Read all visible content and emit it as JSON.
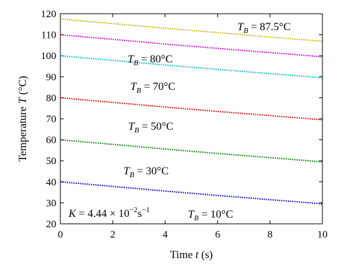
{
  "chart_data": {
    "type": "line",
    "xlabel": {
      "prefix": "Time ",
      "var": "t",
      "suffix": " (s)"
    },
    "ylabel": {
      "prefix": "Temperature ",
      "var": "T",
      "suffix": " (°C)"
    },
    "xlim": [
      0,
      10
    ],
    "ylim": [
      20,
      120
    ],
    "xticks": [
      0,
      2,
      4,
      6,
      8,
      10
    ],
    "yticks": [
      20,
      30,
      40,
      50,
      60,
      70,
      80,
      90,
      100,
      110,
      120
    ],
    "grid": false,
    "x": [
      0,
      2,
      4,
      6,
      8,
      10
    ],
    "series": [
      {
        "color": "#c8b400",
        "values": [
          117.5,
          115.3,
          113.1,
          111.0,
          108.9,
          106.9
        ]
      },
      {
        "color": "#cc00cc",
        "values": [
          110.0,
          107.8,
          105.6,
          103.5,
          101.5,
          99.5
        ]
      },
      {
        "color": "#00b8c8",
        "values": [
          100.0,
          97.8,
          95.6,
          93.5,
          91.5,
          89.5
        ]
      },
      {
        "color": "#e00000",
        "values": [
          80.0,
          77.8,
          75.6,
          73.5,
          71.5,
          69.5
        ]
      },
      {
        "color": "#008000",
        "values": [
          60.0,
          57.8,
          55.6,
          53.5,
          51.5,
          49.5
        ]
      },
      {
        "color": "#0000cc",
        "values": [
          40.0,
          37.8,
          35.6,
          33.5,
          31.5,
          29.5
        ]
      }
    ],
    "annotations": [
      {
        "var": "T",
        "sub": "B",
        "text": " = 87.5°C"
      },
      {
        "var": "T",
        "sub": "B",
        "text": " = 80°C"
      },
      {
        "var": "T",
        "sub": "B",
        "text": " = 70°C"
      },
      {
        "var": "T",
        "sub": "B",
        "text": " = 50°C"
      },
      {
        "var": "T",
        "sub": "B",
        "text": " = 30°C"
      },
      {
        "var": "T",
        "sub": "B",
        "text": " = 10°C"
      }
    ],
    "rate_constant": {
      "var": "K",
      "mid": " = 4.44 × 10",
      "exp": "−2",
      "unit": "s",
      "unit_exp": "−1"
    }
  }
}
